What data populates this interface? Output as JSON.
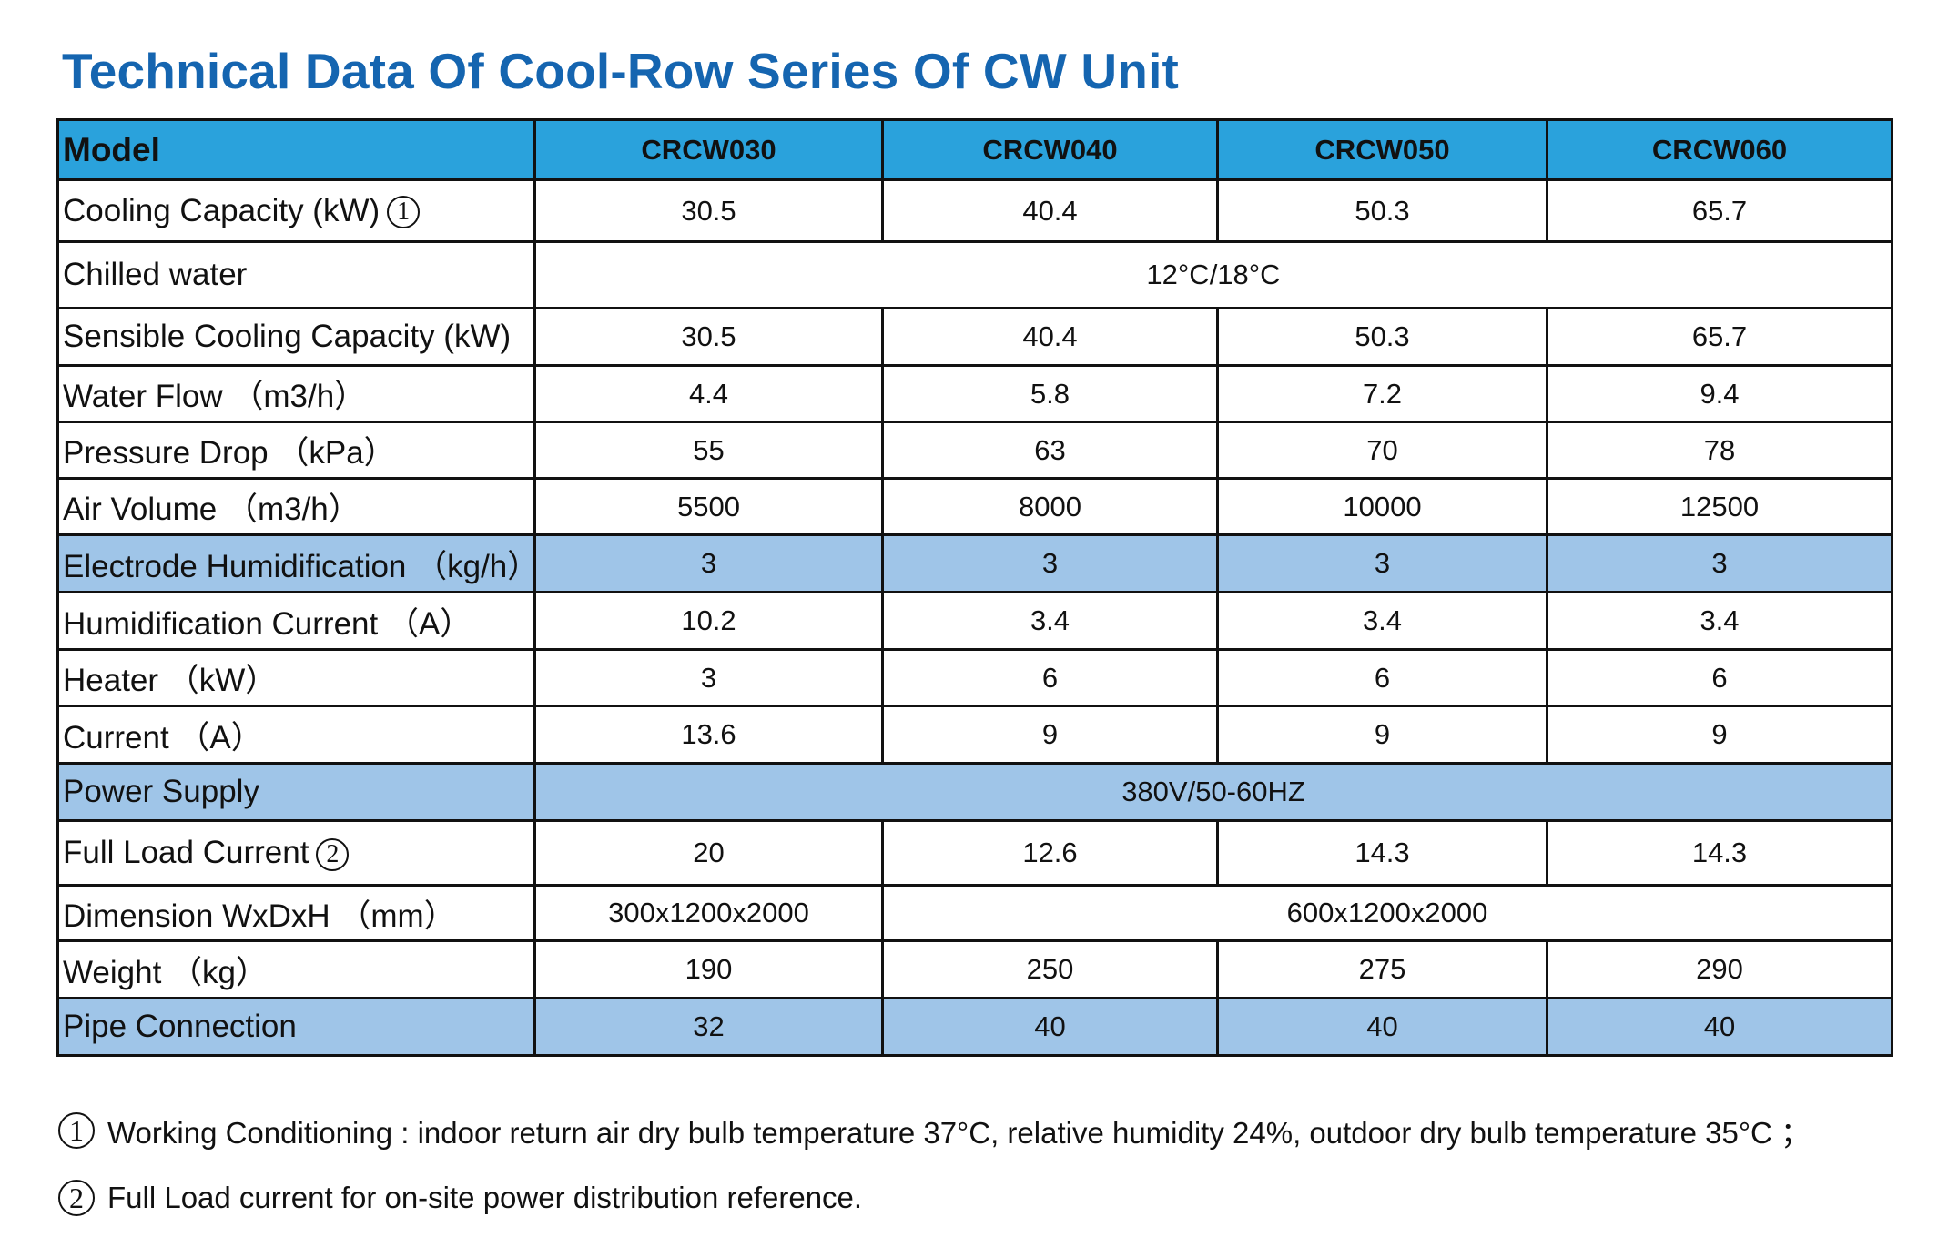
{
  "title": "Technical Data Of Cool-Row Series Of CW Unit",
  "header": {
    "model_label": "Model",
    "models": [
      "CRCW030",
      "CRCW040",
      "CRCW050",
      "CRCW060"
    ]
  },
  "rows": {
    "cooling_capacity": {
      "label": "Cooling Capacity (kW)",
      "note": "1",
      "values": [
        "30.5",
        "40.4",
        "50.3",
        "65.7"
      ]
    },
    "chilled_water": {
      "label": "Chilled water",
      "value": "12°C/18°C"
    },
    "sensible_cooling": {
      "label": "Sensible Cooling Capacity (kW)",
      "values": [
        "30.5",
        "40.4",
        "50.3",
        "65.7"
      ]
    },
    "water_flow": {
      "label": "Water Flow （m3/h）",
      "values": [
        "4.4",
        "5.8",
        "7.2",
        "9.4"
      ]
    },
    "pressure_drop": {
      "label": "Pressure Drop （kPa）",
      "values": [
        "55",
        "63",
        "70",
        "78"
      ]
    },
    "air_volume": {
      "label": "Air Volume （m3/h）",
      "values": [
        "5500",
        "8000",
        "10000",
        "12500"
      ]
    },
    "electrode_humidification": {
      "label": "Electrode Humidification （kg/h）",
      "values": [
        "3",
        "3",
        "3",
        "3"
      ]
    },
    "humidification_current": {
      "label": "Humidification Current （A）",
      "values": [
        "10.2",
        "3.4",
        "3.4",
        "3.4"
      ]
    },
    "heater": {
      "label": "Heater （kW）",
      "values": [
        "3",
        "6",
        "6",
        "6"
      ]
    },
    "current": {
      "label": "Current （A）",
      "values": [
        "13.6",
        "9",
        "9",
        "9"
      ]
    },
    "power_supply": {
      "label": "Power Supply",
      "value": "380V/50-60HZ"
    },
    "full_load_current": {
      "label": "Full Load Current",
      "note": "2",
      "values": [
        "20",
        "12.6",
        "14.3",
        "14.3"
      ]
    },
    "dimension": {
      "label": "Dimension WxDxH （mm）",
      "values": [
        "300x1200x2000",
        "600x1200x2000"
      ]
    },
    "weight": {
      "label": "Weight （kg）",
      "values": [
        "190",
        "250",
        "275",
        "290"
      ]
    },
    "pipe_connection": {
      "label": "Pipe Connection",
      "values": [
        "32",
        "40",
        "40",
        "40"
      ]
    }
  },
  "notes": [
    {
      "marker": "1",
      "text": "Working Conditioning :  indoor return air dry bulb temperature 37°C, relative humidity 24%, outdoor dry bulb temperature 35°C ；"
    },
    {
      "marker": "2",
      "text": "Full Load current for on-site power distribution reference."
    }
  ],
  "colors": {
    "title": "#1565b0",
    "header_bg": "#2aa2dc",
    "highlight_row_bg": "#9fc5e8"
  }
}
